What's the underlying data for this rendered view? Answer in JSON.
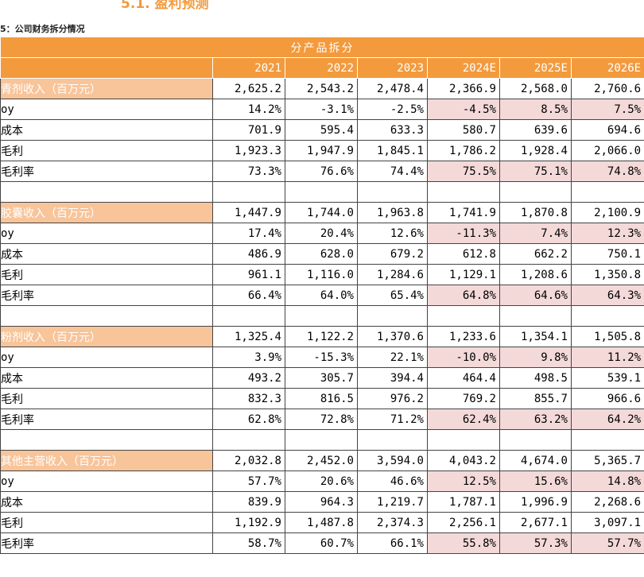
{
  "section_title": "5.1. 盈利预测",
  "caption": "5：公司财务拆分情况",
  "table": {
    "title": "分产品拆分",
    "columns": [
      "2021",
      "2022",
      "2023",
      "2024E",
      "2025E",
      "2026E"
    ],
    "groups": [
      {
        "label": "青剂收入（百万元）",
        "values": [
          "2,625.2",
          "2,543.2",
          "2,478.4",
          "2,366.9",
          "2,568.0",
          "2,760.6"
        ],
        "rows": [
          {
            "label": "oy",
            "values": [
              "14.2%",
              "-3.1%",
              "-2.5%",
              "-4.5%",
              "8.5%",
              "7.5%"
            ]
          },
          {
            "label": "成本",
            "values": [
              "701.9",
              "595.4",
              "633.3",
              "580.7",
              "639.6",
              "694.6"
            ]
          },
          {
            "label": "毛利",
            "values": [
              "1,923.3",
              "1,947.9",
              "1,845.1",
              "1,786.2",
              "1,928.4",
              "2,066.0"
            ]
          },
          {
            "label": "毛利率",
            "values": [
              "73.3%",
              "76.6%",
              "74.4%",
              "75.5%",
              "75.1%",
              "74.8%"
            ]
          }
        ]
      },
      {
        "label": "胶囊收入（百万元）",
        "values": [
          "1,447.9",
          "1,744.0",
          "1,963.8",
          "1,741.9",
          "1,870.8",
          "2,100.9"
        ],
        "rows": [
          {
            "label": "oy",
            "values": [
              "17.4%",
              "20.4%",
              "12.6%",
              "-11.3%",
              "7.4%",
              "12.3%"
            ]
          },
          {
            "label": "成本",
            "values": [
              "486.9",
              "628.0",
              "679.2",
              "612.8",
              "662.2",
              "750.1"
            ]
          },
          {
            "label": "毛利",
            "values": [
              "961.1",
              "1,116.0",
              "1,284.6",
              "1,129.1",
              "1,208.6",
              "1,350.8"
            ]
          },
          {
            "label": "毛利率",
            "values": [
              "66.4%",
              "64.0%",
              "65.4%",
              "64.8%",
              "64.6%",
              "64.3%"
            ]
          }
        ]
      },
      {
        "label": "粉剂收入（百万元）",
        "values": [
          "1,325.4",
          "1,122.2",
          "1,370.6",
          "1,233.6",
          "1,354.1",
          "1,505.8"
        ],
        "rows": [
          {
            "label": "oy",
            "values": [
              "3.9%",
              "-15.3%",
              "22.1%",
              "-10.0%",
              "9.8%",
              "11.2%"
            ]
          },
          {
            "label": "成本",
            "values": [
              "493.2",
              "305.7",
              "394.4",
              "464.4",
              "498.5",
              "539.1"
            ]
          },
          {
            "label": "毛利",
            "values": [
              "832.3",
              "816.5",
              "976.2",
              "769.2",
              "855.7",
              "966.6"
            ]
          },
          {
            "label": "毛利率",
            "values": [
              "62.8%",
              "72.8%",
              "71.2%",
              "62.4%",
              "63.2%",
              "64.2%"
            ]
          }
        ]
      },
      {
        "label": "其他主营收入（百万元）",
        "values": [
          "2,032.8",
          "2,452.0",
          "3,594.0",
          "4,043.2",
          "4,674.0",
          "5,365.7"
        ],
        "rows": [
          {
            "label": "oy",
            "values": [
              "57.7%",
              "20.6%",
              "46.6%",
              "12.5%",
              "15.6%",
              "14.8%"
            ]
          },
          {
            "label": "成本",
            "values": [
              "839.9",
              "964.3",
              "1,219.7",
              "1,787.1",
              "1,996.9",
              "2,268.6"
            ]
          },
          {
            "label": "毛利",
            "values": [
              "1,192.9",
              "1,487.8",
              "2,374.3",
              "2,256.1",
              "2,677.1",
              "3,097.1"
            ]
          },
          {
            "label": "毛利率",
            "values": [
              "58.7%",
              "60.7%",
              "66.1%",
              "55.8%",
              "57.3%",
              "57.7%"
            ]
          }
        ]
      }
    ]
  }
}
